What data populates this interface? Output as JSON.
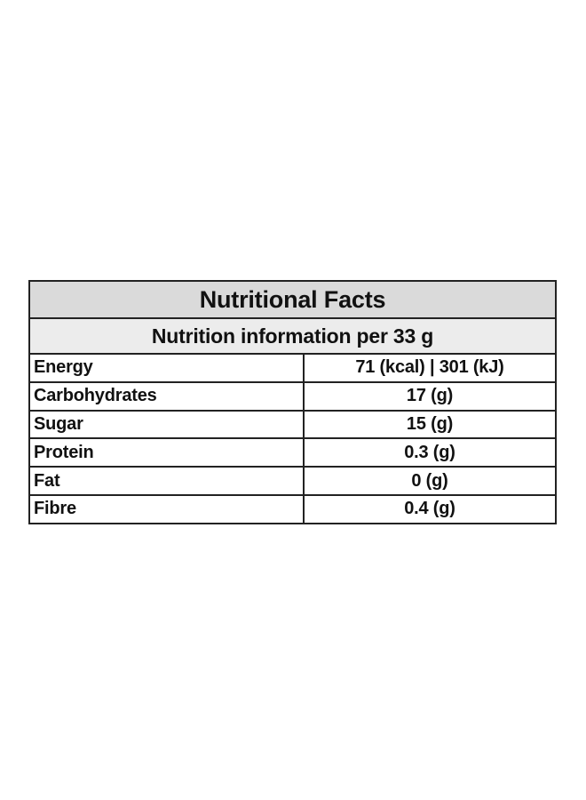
{
  "table": {
    "title": "Nutritional Facts",
    "subtitle": "Nutrition information per 33 g",
    "rows": [
      {
        "name": "Energy",
        "value": "71 (kcal) | 301 (kJ)"
      },
      {
        "name": "Carbohydrates",
        "value": "17 (g)"
      },
      {
        "name": "Sugar",
        "value": "15 (g)"
      },
      {
        "name": "Protein",
        "value": "0.3 (g)"
      },
      {
        "name": "Fat",
        "value": "0 (g)"
      },
      {
        "name": "Fibre",
        "value": "0.4 (g)"
      }
    ]
  }
}
